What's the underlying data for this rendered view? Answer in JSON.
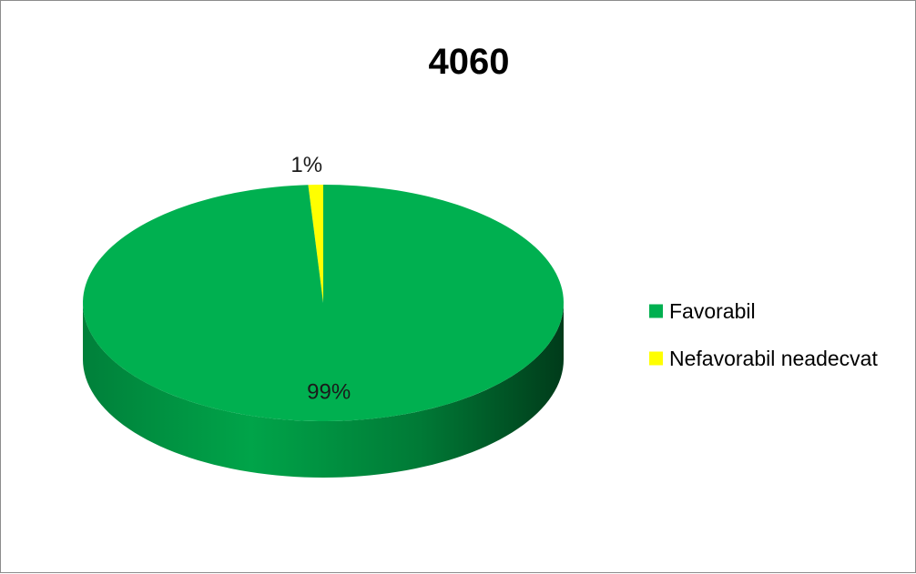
{
  "chart_data": {
    "type": "pie",
    "style": "3d",
    "title": "4060",
    "categories": [
      "Favorabil",
      "Nefavorabil neadecvat"
    ],
    "values": [
      99,
      1
    ],
    "data_labels": [
      "99%",
      "1%"
    ],
    "colors": [
      "#00b050",
      "#ffff00"
    ],
    "legend_position": "right"
  }
}
